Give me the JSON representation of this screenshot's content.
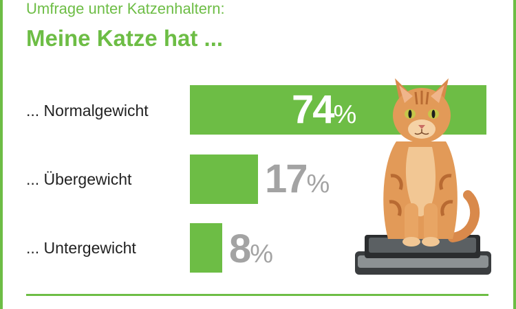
{
  "header": {
    "subtitle": "Umfrage unter Katzenhaltern:",
    "title": "Meine Katze hat ..."
  },
  "chart_data": {
    "type": "bar",
    "orientation": "horizontal",
    "title": "Meine Katze hat ...",
    "subtitle": "Umfrage unter Katzenhaltern:",
    "categories": [
      "... Normalgewicht",
      "... Übergewicht",
      "... Untergewicht"
    ],
    "values": [
      74,
      17,
      8
    ],
    "value_labels": [
      "74",
      "17",
      "8"
    ],
    "unit": "%",
    "xlim": [
      0,
      100
    ],
    "grid": false,
    "legend": "none",
    "colors": {
      "bar": "#6dbd45",
      "value_inside": "#ffffff",
      "value_outside": "#a3a3a3",
      "label": "#222222"
    }
  },
  "illustration": {
    "icon": "cat-on-scale-icon"
  }
}
